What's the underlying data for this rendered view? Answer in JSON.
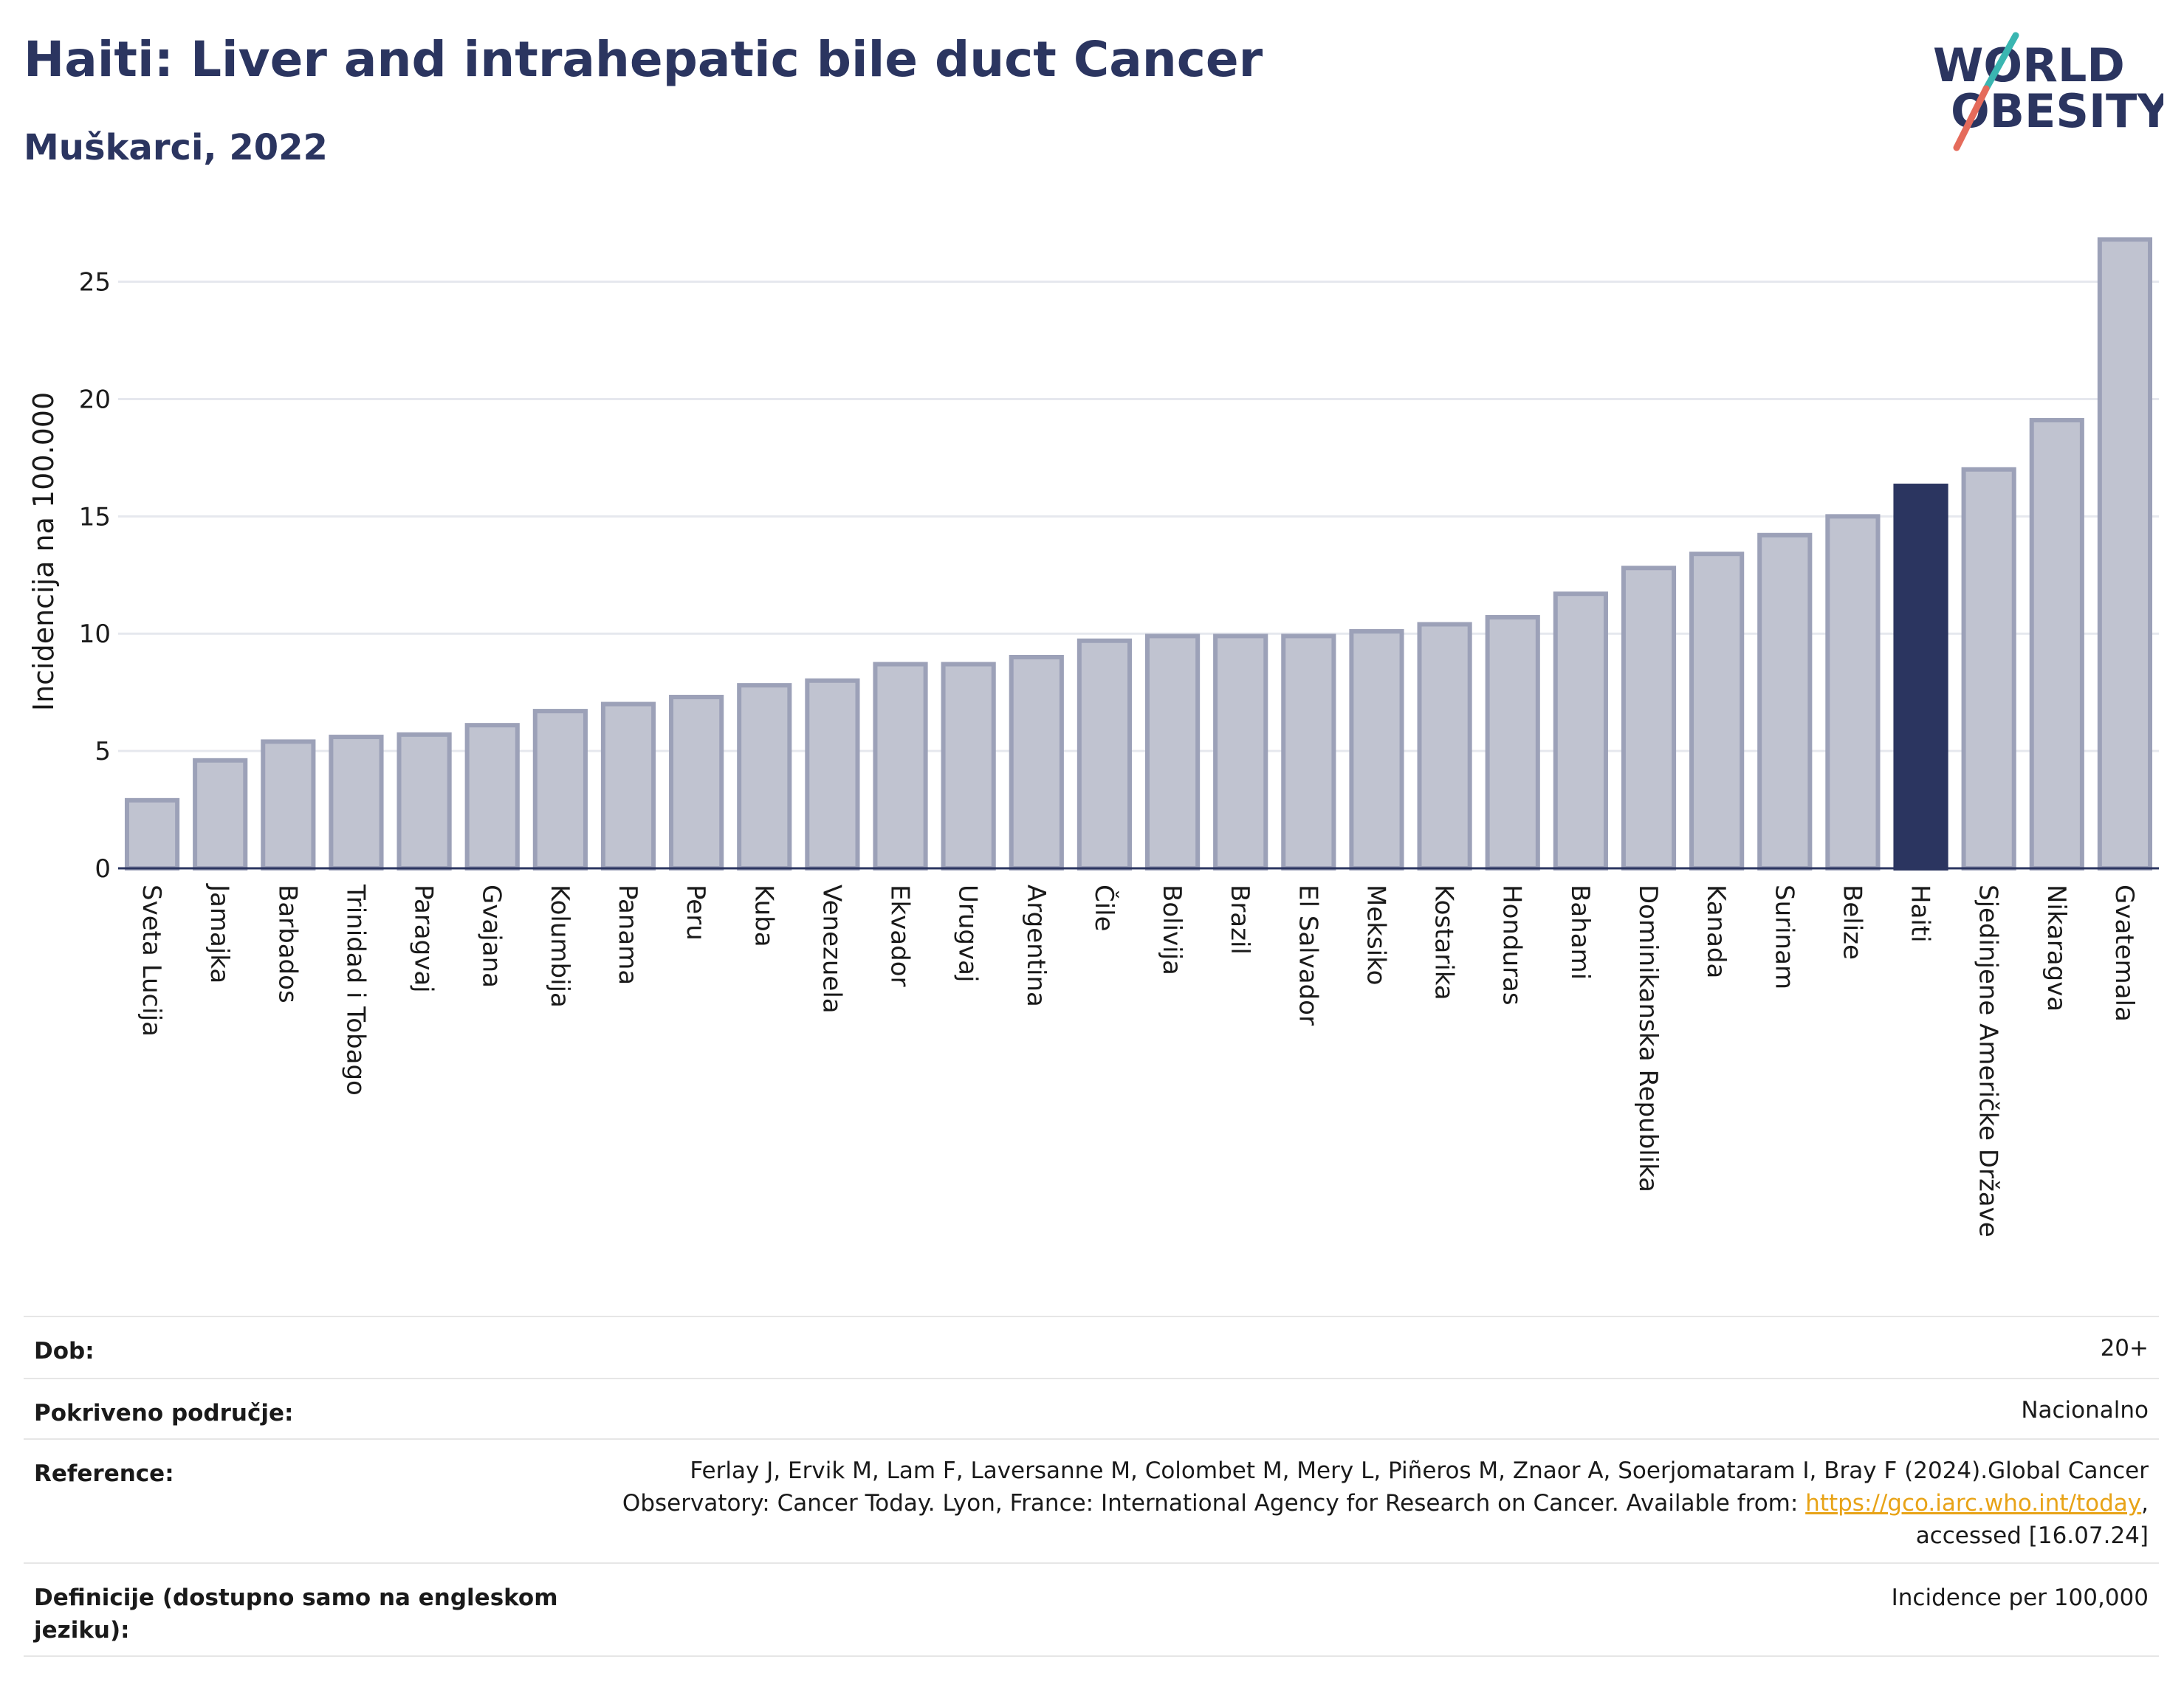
{
  "header": {
    "title": "Haiti: Liver and intrahepatic bile duct Cancer",
    "subtitle": "Muškarci, 2022"
  },
  "logo": {
    "line1": "WORLD",
    "line2": "OBESITY"
  },
  "chart_data": {
    "type": "bar",
    "ylabel": "Incidencija na 100.000",
    "ylim": [
      0,
      27
    ],
    "yticks": [
      0,
      5,
      10,
      15,
      20,
      25
    ],
    "grid": true,
    "categories": [
      "Sveta Lucija",
      "Jamajka",
      "Barbados",
      "Trinidad i Tobago",
      "Paragvaj",
      "Gvajana",
      "Kolumbija",
      "Panama",
      "Peru",
      "Kuba",
      "Venezuela",
      "Ekvador",
      "Urugvaj",
      "Argentina",
      "Čile",
      "Bolivija",
      "Brazil",
      "El Salvador",
      "Meksiko",
      "Kostarika",
      "Honduras",
      "Bahami",
      "Dominikanska Republika",
      "Kanada",
      "Surinam",
      "Belize",
      "Haiti",
      "Sjedinjene Američke Države",
      "Nikaragva",
      "Gvatemala"
    ],
    "values": [
      2.9,
      4.6,
      5.4,
      5.6,
      5.7,
      6.1,
      6.7,
      7.0,
      7.3,
      7.8,
      8.0,
      8.7,
      8.7,
      9.0,
      9.7,
      9.9,
      9.9,
      9.9,
      10.1,
      10.4,
      10.7,
      11.7,
      12.8,
      13.4,
      14.2,
      15.0,
      16.3,
      17.0,
      19.1,
      26.8
    ],
    "highlight": "Haiti",
    "colors": {
      "bar": "#c0c3d0",
      "bar_edge": "#9ca1b8",
      "highlight": "#2b3560",
      "grid": "#e6e8ee",
      "axis": "#2b3560"
    }
  },
  "meta": {
    "age_label": "Dob:",
    "age_value": "20+",
    "coverage_label": "Pokriveno područje:",
    "coverage_value": "Nacionalno",
    "reference_label": "Reference:",
    "reference_line1": "Ferlay J, Ervik M, Lam F, Laversanne M, Colombet M, Mery L, Piñeros M, Znaor A, Soerjomataram I, Bray F (2024).Global Cancer",
    "reference_line2": "Observatory: Cancer Today. Lyon, France: International Agency for Research on Cancer. Available from: ",
    "reference_link": "https://gco.iarc.who.int/today",
    "reference_line2_end": ",",
    "reference_line3": "accessed [16.07.24]",
    "definitions_label_1": "Definicije (dostupno samo na engleskom",
    "definitions_label_2": "jeziku):",
    "definitions_value": "Incidence per 100,000"
  }
}
